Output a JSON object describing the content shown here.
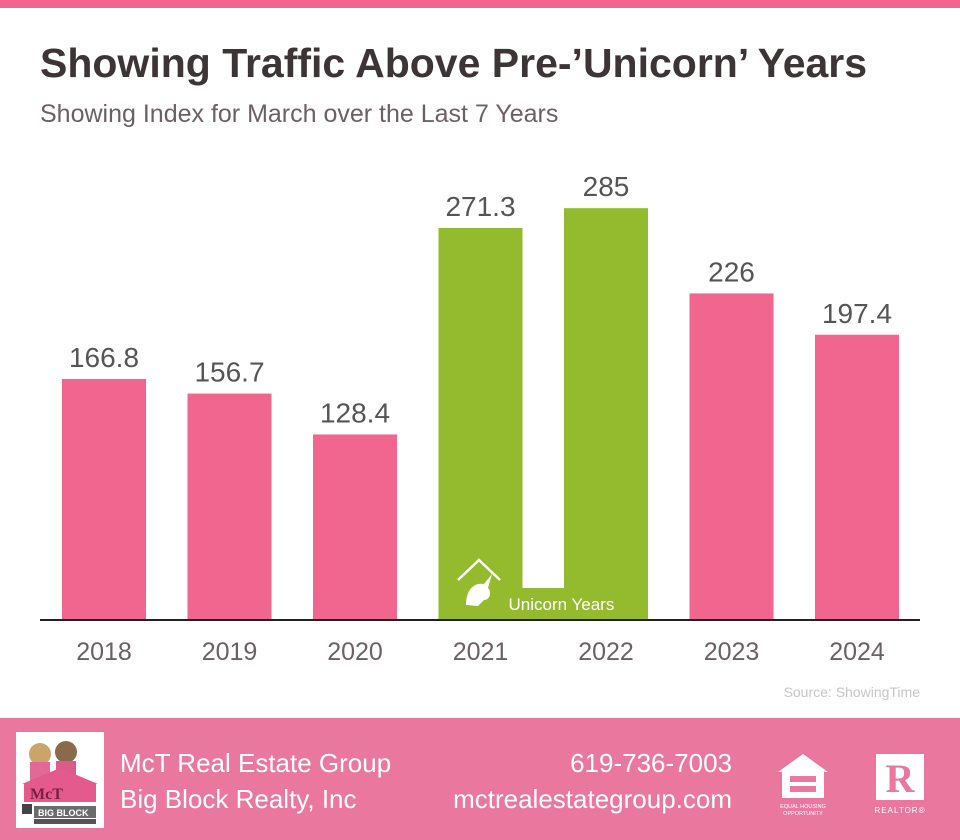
{
  "title": "Showing Traffic Above Pre-’Unicorn’ Years",
  "subtitle": "Showing Index for March over the Last 7 Years",
  "source": "Source: ShowingTime",
  "colors": {
    "accent": "#f0668f",
    "highlight": "#94bb2e",
    "axis": "#222222",
    "footer": "#ea789e"
  },
  "chart_data": {
    "type": "bar",
    "categories": [
      "2018",
      "2019",
      "2020",
      "2021",
      "2022",
      "2023",
      "2024"
    ],
    "values": [
      166.8,
      156.7,
      128.4,
      271.3,
      285,
      226,
      197.4
    ],
    "value_labels": [
      "166.8",
      "156.7",
      "128.4",
      "271.3",
      "285",
      "226",
      "197.4"
    ],
    "highlighted": [
      false,
      false,
      false,
      true,
      true,
      false,
      false
    ],
    "highlight_label": "Unicorn Years",
    "highlight_icon": "house-unicorn-icon",
    "title": "Showing Traffic Above Pre-’Unicorn’ Years",
    "subtitle": "Showing Index for March over the Last 7 Years",
    "xlabel": "",
    "ylabel": "",
    "ylim": [
      0,
      300
    ],
    "grid": false,
    "legend": "none"
  },
  "footer": {
    "company": "McT Real Estate Group",
    "brokerage": "Big Block Realty, Inc",
    "phone": "619-736-7003",
    "website": "mctrealestategroup.com",
    "logo_icon": "mct-big-block-logo",
    "eho_icon": "equal-housing-opportunity-icon",
    "eho_text": "EQUAL HOUSING OPPORTUNITY",
    "realtor_icon": "realtor-icon",
    "realtor_text": "REALTOR®"
  }
}
